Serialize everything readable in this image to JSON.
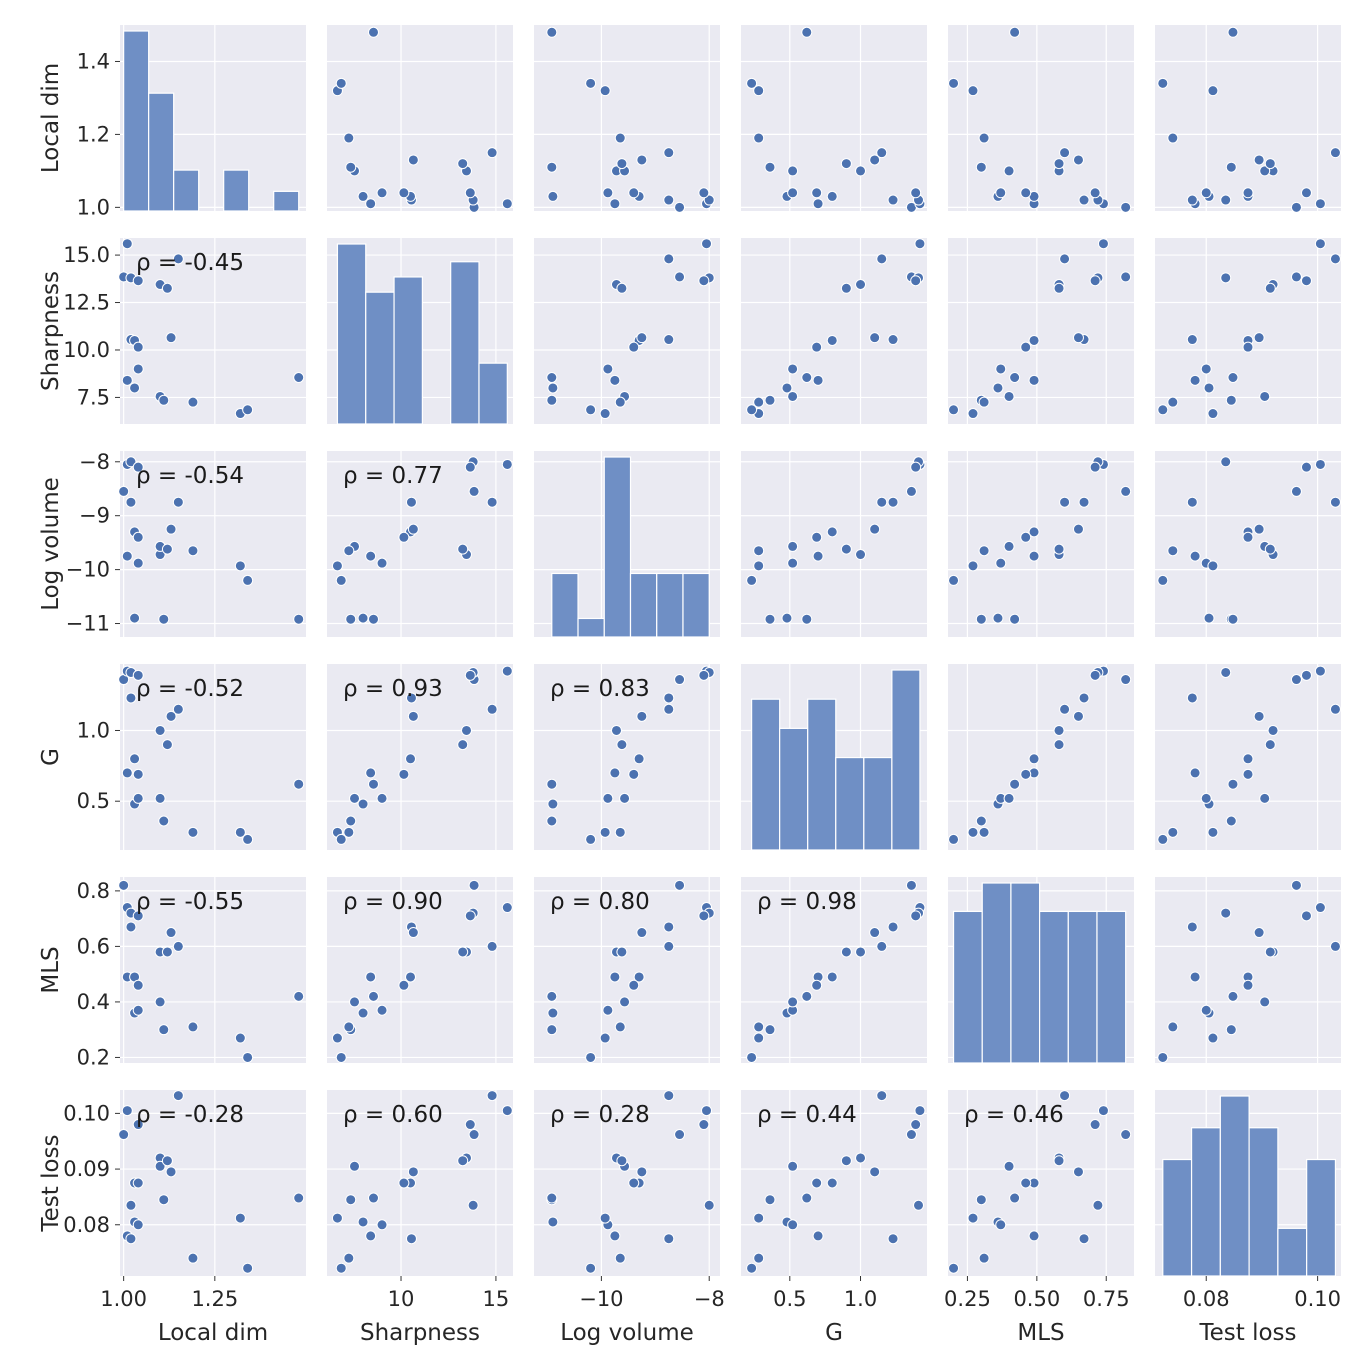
{
  "chart_data": {
    "type": "pairplot",
    "variables": [
      "Local dim",
      "Sharpness",
      "Log volume",
      "G",
      "MLS",
      "Test loss"
    ],
    "colors": {
      "panel_bg": "#eaeaf2",
      "grid": "#ffffff",
      "point_fill": "#4c72b0",
      "hist_fill": "#6f8fc5",
      "point_edge": "#ffffff"
    },
    "ranges": {
      "Local dim": [
        0.99,
        1.5
      ],
      "Sharpness": [
        6.1,
        15.9
      ],
      "Log volume": [
        -11.25,
        -7.8
      ],
      "G": [
        0.155,
        1.47
      ],
      "MLS": [
        0.18,
        0.85
      ],
      "Test loss": [
        0.0708,
        0.1042
      ]
    },
    "ticks": {
      "Local dim": {
        "values": [
          1.0,
          1.25
        ],
        "labels": [
          "1.00",
          "1.25"
        ]
      },
      "Sharpness": {
        "values": [
          10,
          15
        ],
        "labels": [
          "10",
          "15"
        ]
      },
      "Log volume": {
        "values": [
          -10,
          -8
        ],
        "labels": [
          "−10",
          "−8"
        ]
      },
      "G": {
        "values": [
          0.5,
          1.0
        ],
        "labels": [
          "0.5",
          "1.0"
        ]
      },
      "MLS": {
        "values": [
          0.25,
          0.5,
          0.75
        ],
        "labels": [
          "0.25",
          "0.50",
          "0.75"
        ]
      },
      "Test loss": {
        "values": [
          0.08,
          0.1
        ],
        "labels": [
          "0.08",
          "0.10"
        ]
      }
    },
    "y_ticks": {
      "Local dim": {
        "values": [
          1.0,
          1.2,
          1.4
        ],
        "labels": [
          "1.0",
          "1.2",
          "1.4"
        ]
      },
      "Sharpness": {
        "values": [
          7.5,
          10.0,
          12.5,
          15.0
        ],
        "labels": [
          "7.5",
          "10.0",
          "12.5",
          "15.0"
        ]
      },
      "Log volume": {
        "values": [
          -11,
          -10,
          -9,
          -8
        ],
        "labels": [
          "−11",
          "−10",
          "−9",
          "−8"
        ]
      },
      "G": {
        "values": [
          0.5,
          1.0
        ],
        "labels": [
          "0.5",
          "1.0"
        ]
      },
      "MLS": {
        "values": [
          0.2,
          0.4,
          0.6,
          0.8
        ],
        "labels": [
          "0.2",
          "0.4",
          "0.6",
          "0.8"
        ]
      },
      "Test loss": {
        "values": [
          0.08,
          0.09,
          0.1
        ],
        "labels": [
          "0.08",
          "0.09",
          "0.10"
        ]
      }
    },
    "points": [
      [
        1.0,
        13.85,
        -8.55,
        1.36,
        0.82,
        0.0962
      ],
      [
        1.01,
        8.4,
        -9.75,
        0.7,
        0.49,
        0.078
      ],
      [
        1.01,
        15.6,
        -8.05,
        1.42,
        0.74,
        0.1005
      ],
      [
        1.02,
        10.55,
        -8.75,
        1.23,
        0.67,
        0.0775
      ],
      [
        1.02,
        13.8,
        -8.0,
        1.41,
        0.72,
        0.0835
      ],
      [
        1.03,
        10.5,
        -9.3,
        0.8,
        0.49,
        0.0875
      ],
      [
        1.03,
        8.0,
        -10.9,
        0.48,
        0.36,
        0.0805
      ],
      [
        1.04,
        13.65,
        -8.1,
        1.39,
        0.71,
        0.098
      ],
      [
        1.04,
        10.15,
        -9.4,
        0.69,
        0.46,
        0.0875
      ],
      [
        1.04,
        9.0,
        -9.88,
        0.52,
        0.37,
        0.08
      ],
      [
        1.1,
        13.45,
        -9.72,
        1.0,
        0.58,
        0.092
      ],
      [
        1.1,
        7.55,
        -9.57,
        0.52,
        0.4,
        0.0905
      ],
      [
        1.11,
        7.35,
        -10.92,
        0.36,
        0.3,
        0.0845
      ],
      [
        1.12,
        13.25,
        -9.62,
        0.9,
        0.58,
        0.0915
      ],
      [
        1.13,
        10.65,
        -9.25,
        1.1,
        0.65,
        0.0895
      ],
      [
        1.15,
        14.8,
        -8.75,
        1.15,
        0.6,
        0.1032
      ],
      [
        1.19,
        7.25,
        -9.65,
        0.28,
        0.31,
        0.074
      ],
      [
        1.32,
        6.65,
        -9.93,
        0.28,
        0.27,
        0.0812
      ],
      [
        1.34,
        6.85,
        -10.2,
        0.23,
        0.2,
        0.0722
      ],
      [
        1.48,
        8.55,
        -10.92,
        0.62,
        0.42,
        0.0848
      ]
    ],
    "histograms": [
      [
        5.5,
        3.6,
        1.25,
        0,
        1.25,
        0,
        0.6
      ],
      [
        3.55,
        2.6,
        2.9,
        0,
        3.2,
        1.2
      ],
      [
        1.2,
        0.35,
        3.4,
        1.2,
        1.2,
        1.2
      ],
      [
        3.1,
        2.5,
        3.1,
        1.9,
        1.9,
        3.7
      ],
      [
        1.6,
        1.9,
        1.9,
        1.6,
        1.6,
        1.6
      ],
      [
        2.2,
        2.8,
        3.4,
        2.8,
        0.9,
        2.2
      ]
    ],
    "correlations": [
      [
        null,
        null,
        null,
        null,
        null,
        null
      ],
      [
        "ρ = -0.45",
        null,
        null,
        null,
        null,
        null
      ],
      [
        "ρ = -0.54",
        "ρ = 0.77",
        null,
        null,
        null,
        null
      ],
      [
        "ρ = -0.52",
        "ρ = 0.93",
        "ρ = 0.83",
        null,
        null,
        null
      ],
      [
        "ρ = -0.55",
        "ρ = 0.90",
        "ρ = 0.80",
        "ρ = 0.98",
        null,
        null
      ],
      [
        "ρ = -0.28",
        "ρ = 0.60",
        "ρ = 0.28",
        "ρ = 0.44",
        "ρ = 0.46",
        null
      ]
    ]
  }
}
